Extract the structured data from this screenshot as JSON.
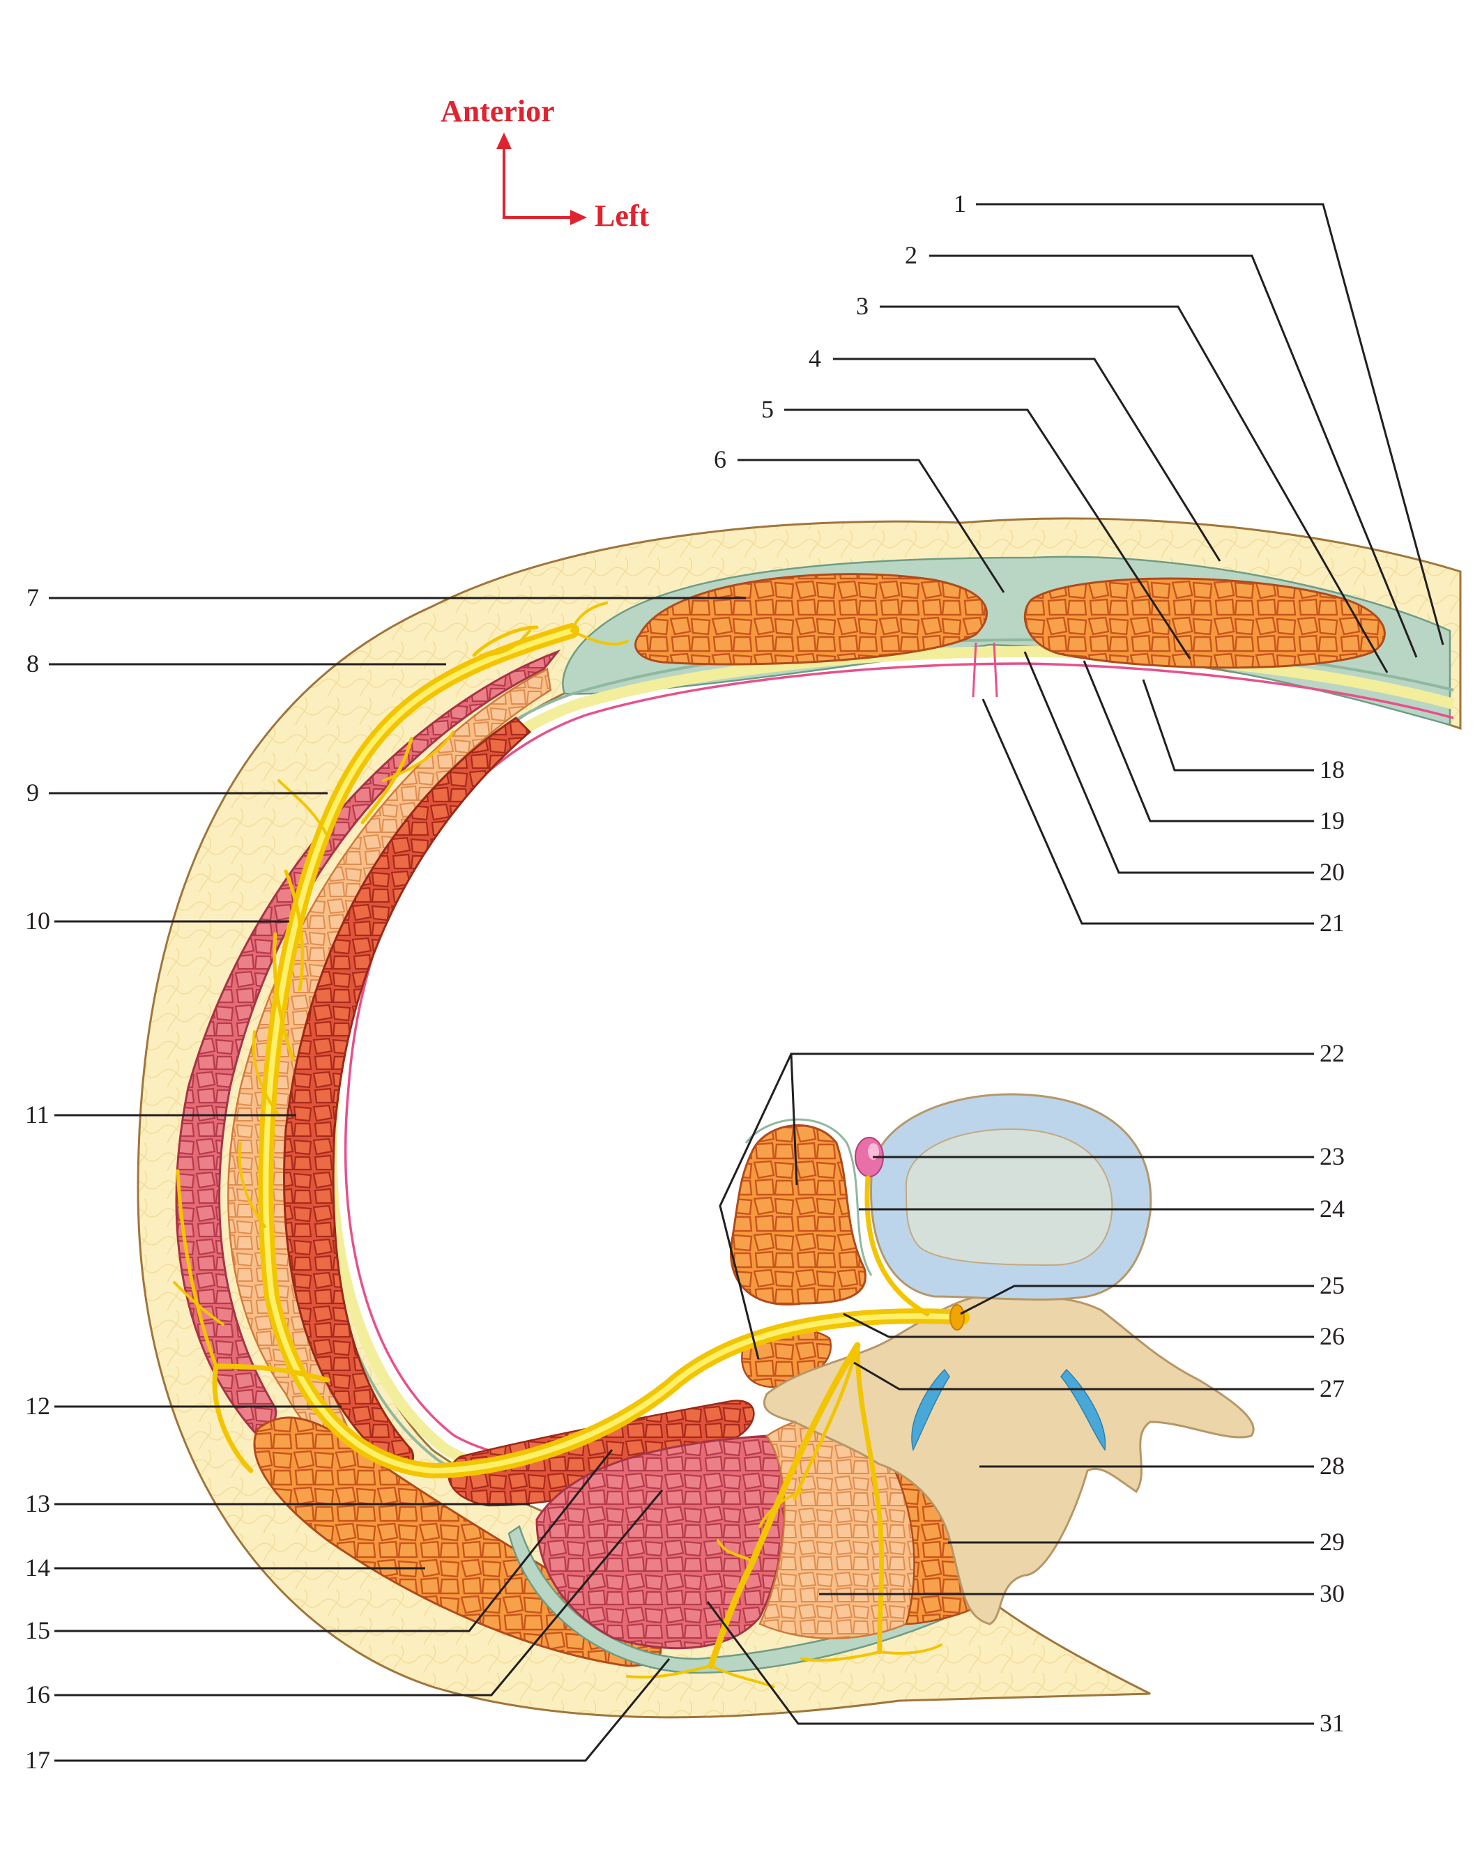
{
  "orientation": {
    "anterior_label": "Anterior",
    "left_label": "Left",
    "arrow_color": "#e0232e"
  },
  "labels": [
    "1",
    "2",
    "3",
    "4",
    "5",
    "6",
    "7",
    "8",
    "9",
    "10",
    "11",
    "12",
    "13",
    "14",
    "15",
    "16",
    "17",
    "18",
    "19",
    "20",
    "21",
    "22",
    "23",
    "24",
    "25",
    "26",
    "27",
    "28",
    "29",
    "30",
    "31"
  ],
  "colors": {
    "subcutaneous_fat": "#fbedb8",
    "skin_line": "#a0753a",
    "fascia": "#b7d4c2",
    "muscle_orange": "#f39a3e",
    "muscle_red": "#e04a2e",
    "muscle_pink": "#e6707c",
    "peritoneum": "#e8508a",
    "transversalis": "#f5f0a0",
    "nerve": "#f6d21e",
    "vertebral_body": "#bcd4ea",
    "bone": "#ecd5a8",
    "disc_blue": "#4aa8d8"
  }
}
